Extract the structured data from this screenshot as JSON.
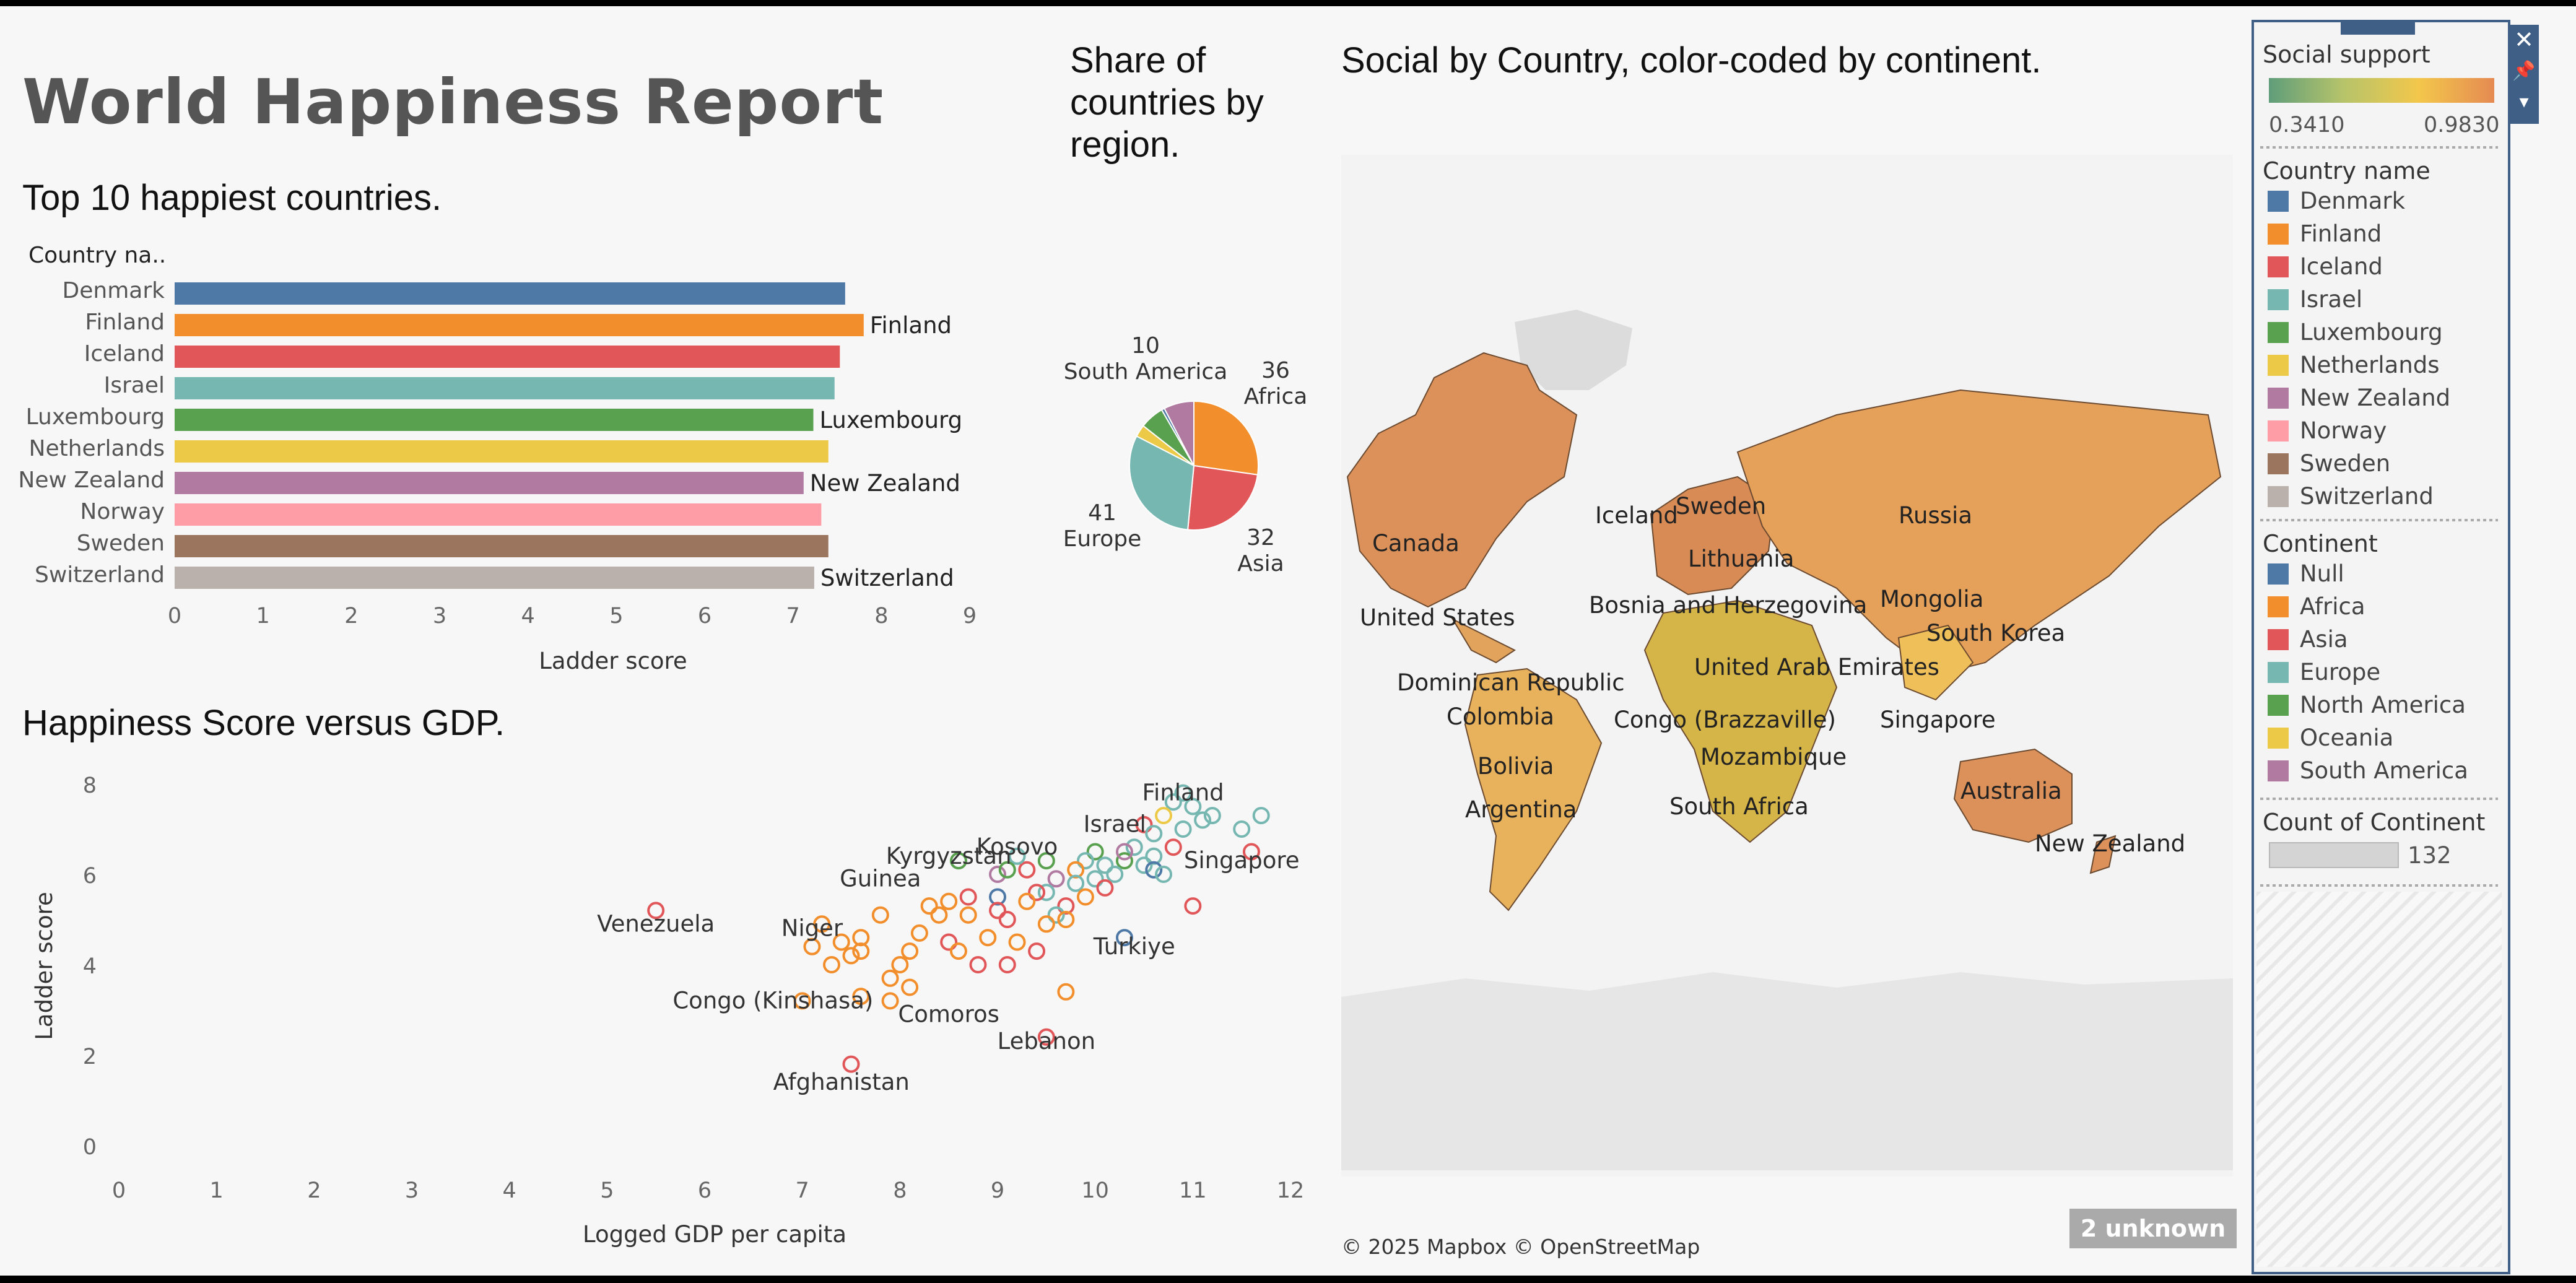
{
  "dashboard": {
    "title": "World Happiness Report"
  },
  "bar_section": {
    "title": "Top 10 happiest countries."
  },
  "pie_section": {
    "title_lines": [
      "Share of",
      "countries by",
      "region."
    ]
  },
  "map_section": {
    "title": "Social by Country, color-coded by continent.",
    "attribution": "© 2025 Mapbox © OpenStreetMap",
    "unknown_badge": "2 unknown",
    "labels": [
      "Canada",
      "United States",
      "Dominican Republic",
      "Colombia",
      "Bolivia",
      "Argentina",
      "Iceland",
      "Sweden",
      "Lithuania",
      "Russia",
      "Bosnia and Herzegovina",
      "Mongolia",
      "South Korea",
      "United Arab Emirates",
      "Congo (Brazzaville)",
      "Singapore",
      "Mozambique",
      "South Africa",
      "Australia",
      "New Zealand"
    ]
  },
  "scatter_section": {
    "title": "Happiness Score versus GDP."
  },
  "colors": {
    "Denmark": "#4e79a7",
    "Finland": "#f28e2b",
    "Iceland": "#e15759",
    "Israel": "#76b7b2",
    "Luxembourg": "#59a14f",
    "Netherlands": "#edc948",
    "New Zealand": "#b07aa1",
    "Norway": "#ff9da7",
    "Sweden": "#9c755f",
    "Switzerland": "#bab0ac",
    "Null": "#4e79a7",
    "Africa": "#f28e2b",
    "Asia": "#e15759",
    "Europe": "#76b7b2",
    "North America": "#59a14f",
    "Oceania": "#edc948",
    "South America": "#b07aa1"
  },
  "chart_data": [
    {
      "type": "bar",
      "title": "Top 10 happiest countries.",
      "dimension_header": "Country na..",
      "xlabel": "Ladder score",
      "xlim": [
        0,
        9
      ],
      "xticks": [
        "0",
        "1",
        "2",
        "3",
        "4",
        "5",
        "6",
        "7",
        "8",
        "9"
      ],
      "categories": [
        "Denmark",
        "Finland",
        "Iceland",
        "Israel",
        "Luxembourg",
        "Netherlands",
        "New Zealand",
        "Norway",
        "Sweden",
        "Switzerland"
      ],
      "values": [
        7.59,
        7.8,
        7.53,
        7.47,
        7.23,
        7.4,
        7.12,
        7.32,
        7.4,
        7.24
      ],
      "data_labels": [
        "",
        "Finland",
        "",
        "",
        "Luxembourg",
        "",
        "New Zealand",
        "",
        "",
        "Switzerland"
      ]
    },
    {
      "type": "pie",
      "title": "Share of countries by region.",
      "slices": [
        {
          "name": "Africa",
          "value": 36,
          "label": "36\nAfrica"
        },
        {
          "name": "Asia",
          "value": 32,
          "label": "32\nAsia"
        },
        {
          "name": "Europe",
          "value": 41,
          "label": "41\nEurope"
        },
        {
          "name": "Oceania",
          "value": 4,
          "label": ""
        },
        {
          "name": "North America",
          "value": 8,
          "label": ""
        },
        {
          "name": "Null",
          "value": 1,
          "label": ""
        },
        {
          "name": "South America",
          "value": 10,
          "label": "10\nSouth America"
        }
      ]
    },
    {
      "type": "scatter",
      "title": "Happiness Score versus GDP.",
      "xlabel": "Logged GDP per capita",
      "ylabel": "Ladder score",
      "xlim": [
        0,
        12
      ],
      "ylim": [
        0,
        8
      ],
      "xticks": [
        "0",
        "1",
        "2",
        "3",
        "4",
        "5",
        "6",
        "7",
        "8",
        "9",
        "10",
        "11",
        "12"
      ],
      "yticks": [
        "0",
        "2",
        "4",
        "6",
        "8"
      ],
      "annotations": [
        {
          "text": "Finland",
          "x": 10.9,
          "y": 7.8
        },
        {
          "text": "Israel",
          "x": 10.2,
          "y": 7.1
        },
        {
          "text": "Kosovo",
          "x": 9.2,
          "y": 6.6
        },
        {
          "text": "Kyrgyzstan",
          "x": 8.5,
          "y": 6.4
        },
        {
          "text": "Singapore",
          "x": 11.5,
          "y": 6.3
        },
        {
          "text": "Guinea",
          "x": 7.8,
          "y": 5.9
        },
        {
          "text": "Venezuela",
          "x": 5.5,
          "y": 4.9
        },
        {
          "text": "Niger",
          "x": 7.1,
          "y": 4.8
        },
        {
          "text": "Turkiye",
          "x": 10.4,
          "y": 4.4
        },
        {
          "text": "Congo (Kinshasa)",
          "x": 6.7,
          "y": 3.2
        },
        {
          "text": "Comoros",
          "x": 8.5,
          "y": 2.9
        },
        {
          "text": "Lebanon",
          "x": 9.5,
          "y": 2.3
        },
        {
          "text": "Afghanistan",
          "x": 7.4,
          "y": 1.4
        }
      ],
      "points": [
        {
          "x": 5.5,
          "y": 5.2,
          "c": "Asia"
        },
        {
          "x": 7.5,
          "y": 1.8,
          "c": "Asia"
        },
        {
          "x": 9.5,
          "y": 2.4,
          "c": "Asia"
        },
        {
          "x": 9.7,
          "y": 3.4,
          "c": "Africa"
        },
        {
          "x": 10.3,
          "y": 4.6,
          "c": "Null"
        },
        {
          "x": 11.0,
          "y": 5.3,
          "c": "Asia"
        },
        {
          "x": 11.6,
          "y": 6.5,
          "c": "Asia"
        },
        {
          "x": 11.5,
          "y": 7.0,
          "c": "Europe"
        },
        {
          "x": 11.7,
          "y": 7.3,
          "c": "Europe"
        },
        {
          "x": 10.9,
          "y": 7.8,
          "c": "Europe"
        },
        {
          "x": 10.8,
          "y": 7.6,
          "c": "Europe"
        },
        {
          "x": 11.0,
          "y": 7.5,
          "c": "Europe"
        },
        {
          "x": 11.2,
          "y": 7.3,
          "c": "Europe"
        },
        {
          "x": 11.1,
          "y": 7.2,
          "c": "Europe"
        },
        {
          "x": 10.7,
          "y": 7.3,
          "c": "Oceania"
        },
        {
          "x": 10.5,
          "y": 7.1,
          "c": "Asia"
        },
        {
          "x": 10.9,
          "y": 7.0,
          "c": "Europe"
        },
        {
          "x": 10.6,
          "y": 6.9,
          "c": "Europe"
        },
        {
          "x": 10.8,
          "y": 6.6,
          "c": "Asia"
        },
        {
          "x": 10.6,
          "y": 6.4,
          "c": "Europe"
        },
        {
          "x": 10.4,
          "y": 6.6,
          "c": "Europe"
        },
        {
          "x": 10.3,
          "y": 6.3,
          "c": "North America"
        },
        {
          "x": 10.5,
          "y": 6.2,
          "c": "Europe"
        },
        {
          "x": 10.6,
          "y": 6.1,
          "c": "Null"
        },
        {
          "x": 10.7,
          "y": 6.0,
          "c": "Europe"
        },
        {
          "x": 10.2,
          "y": 6.0,
          "c": "Europe"
        },
        {
          "x": 10.0,
          "y": 6.5,
          "c": "North America"
        },
        {
          "x": 9.9,
          "y": 6.3,
          "c": "Europe"
        },
        {
          "x": 9.8,
          "y": 6.1,
          "c": "Africa"
        },
        {
          "x": 10.0,
          "y": 5.9,
          "c": "Europe"
        },
        {
          "x": 9.8,
          "y": 5.8,
          "c": "Europe"
        },
        {
          "x": 10.1,
          "y": 5.7,
          "c": "Asia"
        },
        {
          "x": 9.6,
          "y": 5.9,
          "c": "South America"
        },
        {
          "x": 9.5,
          "y": 5.6,
          "c": "Europe"
        },
        {
          "x": 9.7,
          "y": 5.3,
          "c": "Asia"
        },
        {
          "x": 9.6,
          "y": 5.1,
          "c": "Europe"
        },
        {
          "x": 9.4,
          "y": 5.6,
          "c": "Asia"
        },
        {
          "x": 9.3,
          "y": 6.1,
          "c": "Asia"
        },
        {
          "x": 9.5,
          "y": 6.3,
          "c": "North America"
        },
        {
          "x": 9.2,
          "y": 6.4,
          "c": "Europe"
        },
        {
          "x": 9.0,
          "y": 6.0,
          "c": "South America"
        },
        {
          "x": 9.1,
          "y": 6.1,
          "c": "North America"
        },
        {
          "x": 9.0,
          "y": 5.5,
          "c": "Null"
        },
        {
          "x": 9.0,
          "y": 5.2,
          "c": "Asia"
        },
        {
          "x": 9.1,
          "y": 5.0,
          "c": "Asia"
        },
        {
          "x": 8.6,
          "y": 6.3,
          "c": "North America"
        },
        {
          "x": 8.7,
          "y": 5.5,
          "c": "Asia"
        },
        {
          "x": 8.5,
          "y": 5.4,
          "c": "Africa"
        },
        {
          "x": 8.3,
          "y": 5.3,
          "c": "Africa"
        },
        {
          "x": 8.7,
          "y": 5.1,
          "c": "Africa"
        },
        {
          "x": 8.5,
          "y": 4.5,
          "c": "Asia"
        },
        {
          "x": 8.6,
          "y": 4.3,
          "c": "Africa"
        },
        {
          "x": 8.8,
          "y": 4.0,
          "c": "Asia"
        },
        {
          "x": 9.1,
          "y": 4.0,
          "c": "Asia"
        },
        {
          "x": 9.4,
          "y": 4.3,
          "c": "Asia"
        },
        {
          "x": 9.5,
          "y": 4.9,
          "c": "Africa"
        },
        {
          "x": 9.3,
          "y": 5.4,
          "c": "Africa"
        },
        {
          "x": 9.2,
          "y": 4.5,
          "c": "Africa"
        },
        {
          "x": 9.7,
          "y": 5.0,
          "c": "Africa"
        },
        {
          "x": 9.9,
          "y": 5.5,
          "c": "Africa"
        },
        {
          "x": 8.2,
          "y": 4.7,
          "c": "Africa"
        },
        {
          "x": 8.1,
          "y": 4.3,
          "c": "Africa"
        },
        {
          "x": 8.0,
          "y": 4.0,
          "c": "Africa"
        },
        {
          "x": 7.9,
          "y": 3.7,
          "c": "Africa"
        },
        {
          "x": 8.1,
          "y": 3.5,
          "c": "Africa"
        },
        {
          "x": 7.8,
          "y": 5.1,
          "c": "Africa"
        },
        {
          "x": 7.6,
          "y": 4.6,
          "c": "Africa"
        },
        {
          "x": 7.6,
          "y": 4.3,
          "c": "Africa"
        },
        {
          "x": 7.5,
          "y": 4.2,
          "c": "Africa"
        },
        {
          "x": 7.4,
          "y": 4.5,
          "c": "Africa"
        },
        {
          "x": 7.3,
          "y": 4.0,
          "c": "Africa"
        },
        {
          "x": 7.2,
          "y": 4.9,
          "c": "Africa"
        },
        {
          "x": 7.1,
          "y": 4.4,
          "c": "Africa"
        },
        {
          "x": 7.0,
          "y": 3.2,
          "c": "Africa"
        },
        {
          "x": 7.6,
          "y": 3.3,
          "c": "Africa"
        },
        {
          "x": 7.9,
          "y": 3.2,
          "c": "Africa"
        },
        {
          "x": 8.4,
          "y": 5.1,
          "c": "Africa"
        },
        {
          "x": 8.9,
          "y": 4.6,
          "c": "Africa"
        },
        {
          "x": 10.1,
          "y": 6.2,
          "c": "Europe"
        },
        {
          "x": 10.3,
          "y": 6.5,
          "c": "South America"
        }
      ]
    }
  ],
  "legend": {
    "social_support": {
      "title": "Social support",
      "min": "0.3410",
      "max": "0.9830"
    },
    "country_name": {
      "title": "Country name",
      "items": [
        "Denmark",
        "Finland",
        "Iceland",
        "Israel",
        "Luxembourg",
        "Netherlands",
        "New Zealand",
        "Norway",
        "Sweden",
        "Switzerland"
      ]
    },
    "continent": {
      "title": "Continent",
      "items": [
        "Null",
        "Africa",
        "Asia",
        "Europe",
        "North America",
        "Oceania",
        "South America"
      ]
    },
    "count": {
      "title": "Count of Continent",
      "value": "132"
    }
  }
}
